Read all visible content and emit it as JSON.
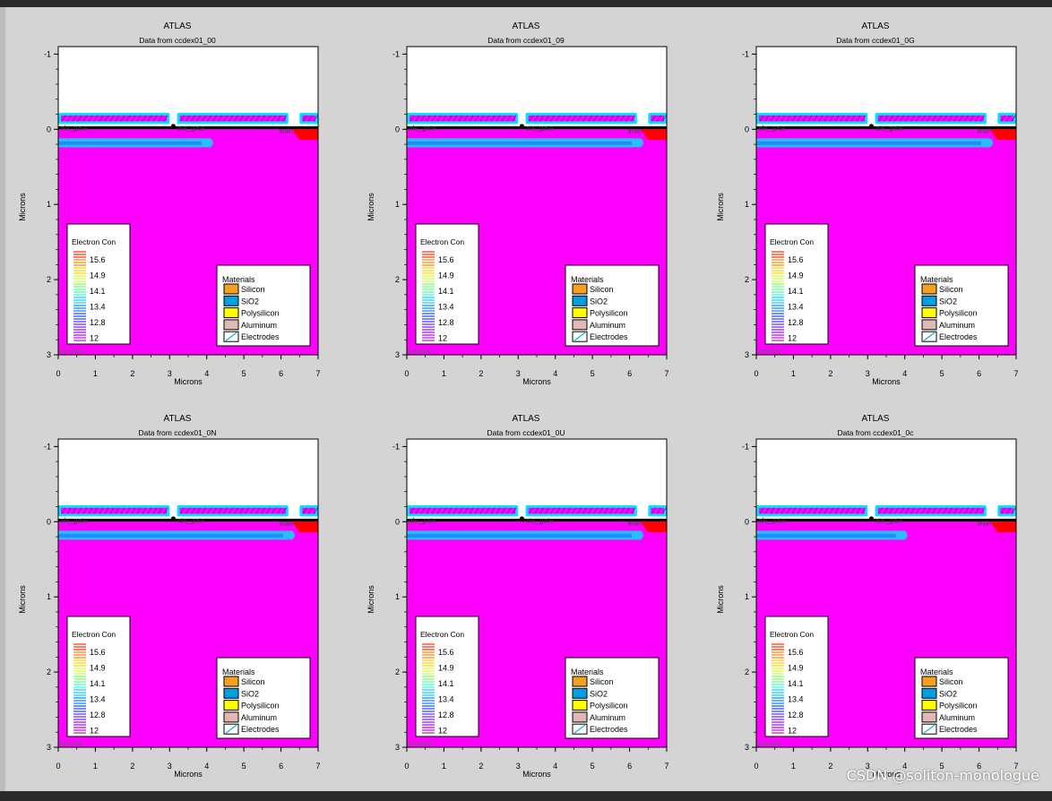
{
  "watermark": "CSDN @soliton-monologue",
  "colors": {
    "substrate": "#ff00ff",
    "oxide_band": "#00e5ff",
    "electrode_fill": "#ff00ff",
    "drain": "#ff0000",
    "contour_mid": "#00e0ff",
    "contour_low": "#2060ff",
    "silicon": "#f5a020",
    "sio2": "#00a0e0",
    "polysilicon": "#ffff00",
    "aluminum": "#e0b8b8"
  },
  "chart_data": [
    {
      "type": "heatmap",
      "title": "ATLAS",
      "subtitle": "Data from ccdex01_00",
      "xlabel": "Microns",
      "ylabel": "Microns",
      "xlim": [
        0,
        7
      ],
      "ylim": [
        -1.1,
        3
      ],
      "x_ticks": [
        "0",
        "1",
        "2",
        "3",
        "4",
        "5",
        "6",
        "7"
      ],
      "y_ticks": [
        "-1",
        "0",
        "1",
        "2",
        "3"
      ],
      "labels": [
        "ale_gate",
        "ate_gate",
        "drain",
        "substrate"
      ],
      "electron_concentration": {
        "title": "Electron Con",
        "values": [
          "15.6",
          "14.9",
          "14.1",
          "13.4",
          "12.8",
          "12"
        ]
      },
      "materials": {
        "title": "Materials",
        "items": [
          "Silicon",
          "SiO2",
          "Polysilicon",
          "Aluminum",
          "Electrodes"
        ]
      },
      "channel_length": 4.1
    },
    {
      "type": "heatmap",
      "title": "ATLAS",
      "subtitle": "Data from ccdex01_09",
      "xlabel": "Microns",
      "ylabel": "Microns",
      "xlim": [
        0,
        7
      ],
      "ylim": [
        -1.1,
        3
      ],
      "x_ticks": [
        "0",
        "1",
        "2",
        "3",
        "4",
        "5",
        "6",
        "7"
      ],
      "y_ticks": [
        "-1",
        "0",
        "1",
        "2",
        "3"
      ],
      "labels": [
        "ale_gate",
        "ate_gate",
        "drain",
        "substrate"
      ],
      "electron_concentration": {
        "title": "Electron Con",
        "values": [
          "15.6",
          "14.9",
          "14.1",
          "13.4",
          "12.8",
          "12"
        ]
      },
      "materials": {
        "title": "Materials",
        "items": [
          "Silicon",
          "SiO2",
          "Polysilicon",
          "Aluminum",
          "Electrodes"
        ]
      },
      "channel_length": 6.3
    },
    {
      "type": "heatmap",
      "title": "ATLAS",
      "subtitle": "Data from ccdex01_0G",
      "xlabel": "Microns",
      "ylabel": "Microns",
      "xlim": [
        0,
        7
      ],
      "ylim": [
        -1.1,
        3
      ],
      "x_ticks": [
        "0",
        "1",
        "2",
        "3",
        "4",
        "5",
        "6",
        "7"
      ],
      "y_ticks": [
        "-1",
        "0",
        "1",
        "2",
        "3"
      ],
      "labels": [
        "ale_gate",
        "ate_gate",
        "drain",
        "substrate"
      ],
      "electron_concentration": {
        "title": "Electron Con",
        "values": [
          "15.6",
          "14.9",
          "14.1",
          "13.4",
          "12.8",
          "12"
        ]
      },
      "materials": {
        "title": "Materials",
        "items": [
          "Silicon",
          "SiO2",
          "Polysilicon",
          "Aluminum",
          "Electrodes"
        ]
      },
      "channel_length": 6.3
    },
    {
      "type": "heatmap",
      "title": "ATLAS",
      "subtitle": "Data from ccdex01_0N",
      "xlabel": "Microns",
      "ylabel": "Microns",
      "xlim": [
        0,
        7
      ],
      "ylim": [
        -1.1,
        3
      ],
      "x_ticks": [
        "0",
        "1",
        "2",
        "3",
        "4",
        "5",
        "6",
        "7"
      ],
      "y_ticks": [
        "-1",
        "0",
        "1",
        "2",
        "3"
      ],
      "labels": [
        "ale_gate",
        "ate_gate",
        "drain",
        "substrate"
      ],
      "electron_concentration": {
        "title": "Electron Con",
        "values": [
          "15.6",
          "14.9",
          "14.1",
          "13.4",
          "12.8",
          "12"
        ]
      },
      "materials": {
        "title": "Materials",
        "items": [
          "Silicon",
          "SiO2",
          "Polysilicon",
          "Aluminum",
          "Electrodes"
        ]
      },
      "channel_length": 6.3
    },
    {
      "type": "heatmap",
      "title": "ATLAS",
      "subtitle": "Data from ccdex01_0U",
      "xlabel": "Microns",
      "ylabel": "Microns",
      "xlim": [
        0,
        7
      ],
      "ylim": [
        -1.1,
        3
      ],
      "x_ticks": [
        "0",
        "1",
        "2",
        "3",
        "4",
        "5",
        "6",
        "7"
      ],
      "y_ticks": [
        "-1",
        "0",
        "1",
        "2",
        "3"
      ],
      "labels": [
        "ale_gate",
        "ate_gate",
        "drain",
        "substrate"
      ],
      "electron_concentration": {
        "title": "Electron Con",
        "values": [
          "15.6",
          "14.9",
          "14.1",
          "13.4",
          "12.8",
          "12"
        ]
      },
      "materials": {
        "title": "Materials",
        "items": [
          "Silicon",
          "SiO2",
          "Polysilicon",
          "Aluminum",
          "Electrodes"
        ]
      },
      "channel_length": 6.3
    },
    {
      "type": "heatmap",
      "title": "ATLAS",
      "subtitle": "Data from ccdex01_0c",
      "xlabel": "Microns",
      "ylabel": "Microns",
      "xlim": [
        0,
        7
      ],
      "ylim": [
        -1.1,
        3
      ],
      "x_ticks": [
        "0",
        "1",
        "2",
        "3",
        "4",
        "5",
        "6",
        "7"
      ],
      "y_ticks": [
        "-1",
        "0",
        "1",
        "2",
        "3"
      ],
      "labels": [
        "ale_gate",
        "ate_gate",
        "drain",
        "substrate"
      ],
      "electron_concentration": {
        "title": "Electron Con",
        "values": [
          "15.6",
          "14.9",
          "14.1",
          "13.4",
          "12.8",
          "12"
        ]
      },
      "materials": {
        "title": "Materials",
        "items": [
          "Silicon",
          "SiO2",
          "Polysilicon",
          "Aluminum",
          "Electrodes"
        ]
      },
      "channel_length": 4.0
    }
  ]
}
